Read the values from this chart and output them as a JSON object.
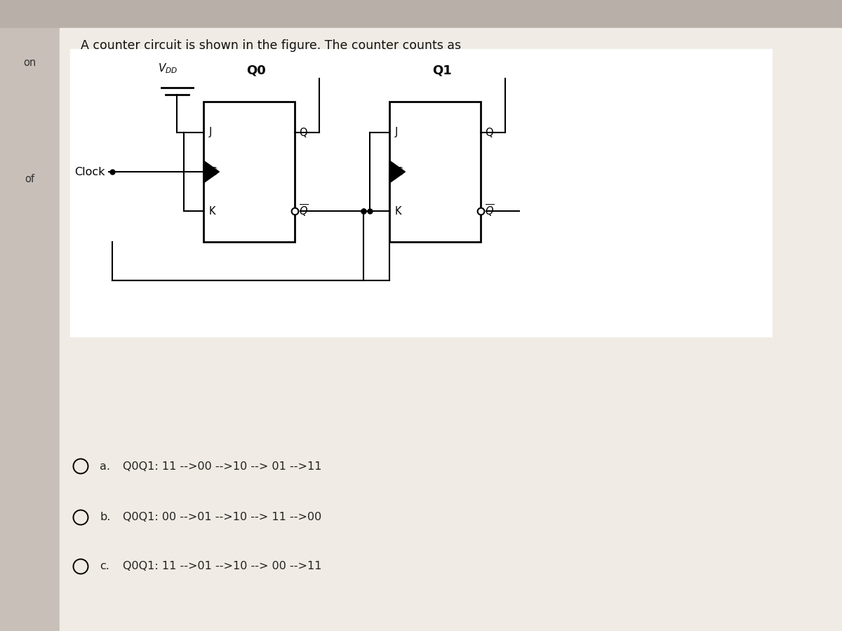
{
  "title": "A counter circuit is shown in the figure. The counter counts as",
  "page_bg": "#e8e0d8",
  "header_bg": "#b8b0a8",
  "content_bg": "#f0ebe4",
  "white_bg": "#ffffff",
  "sidebar_bg": "#c8c0b8",
  "q0_label": "Q0",
  "q1_label": "Q1",
  "clock_label": "Clock",
  "option_a_label": "a.",
  "option_b_label": "b.",
  "option_c_label": "c.",
  "option_a": "Q0Q1: 11 -->00 -->10 --> 01 -->11",
  "option_b": "Q0Q1: 00 -->01 -->10 --> 11 -->00",
  "option_c": "Q0Q1: 11 -->01 -->10 --> 00 -->11",
  "line_color": "#000000",
  "text_color": "#222222",
  "ff_fill": "#ffffff",
  "ff_border": "#000000",
  "lw": 1.5
}
